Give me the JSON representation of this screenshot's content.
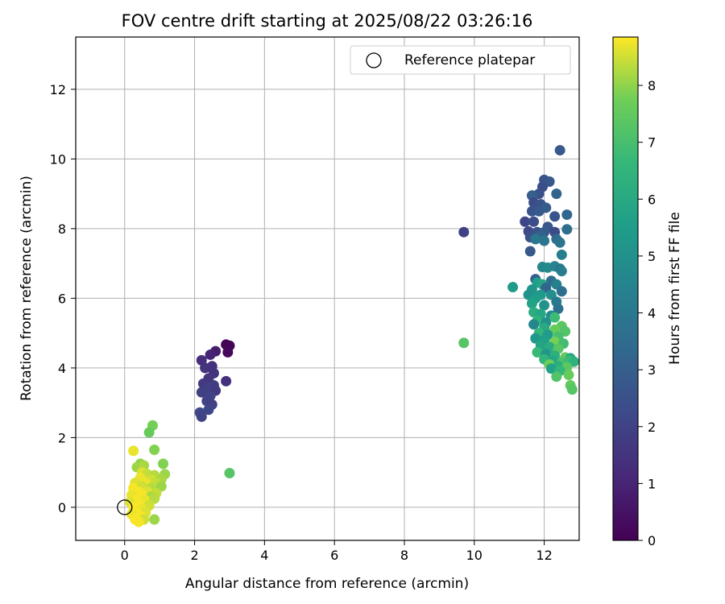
{
  "chart_data": {
    "type": "scatter",
    "title": "FOV centre drift starting at 2025/08/22 03:26:16",
    "xlabel": "Angular distance from reference (arcmin)",
    "ylabel": "Rotation from reference (arcmin)",
    "xlim": [
      -1.4,
      13.0
    ],
    "ylim": [
      -0.95,
      13.5
    ],
    "xticks": [
      0,
      2,
      4,
      6,
      8,
      10,
      12
    ],
    "yticks": [
      0,
      2,
      4,
      6,
      8,
      10,
      12
    ],
    "grid": true,
    "legend": {
      "placement": "upper-right",
      "entries": [
        "Reference platepar"
      ]
    },
    "reference_point": {
      "x": 0,
      "y": 0,
      "marker": "hollow-circle"
    },
    "colorbar": {
      "label": "Hours from first FF file",
      "colormap": "viridis",
      "range": [
        0,
        8.85
      ],
      "ticks": [
        0,
        1,
        2,
        3,
        4,
        5,
        6,
        7,
        8
      ]
    },
    "points": [
      {
        "x": 2.9,
        "y": 4.67,
        "h": 0.05
      },
      {
        "x": 3.0,
        "y": 4.64,
        "h": 0.1
      },
      {
        "x": 2.95,
        "y": 4.45,
        "h": 0.2
      },
      {
        "x": 2.6,
        "y": 4.48,
        "h": 0.8
      },
      {
        "x": 2.45,
        "y": 4.38,
        "h": 1.0
      },
      {
        "x": 2.2,
        "y": 4.22,
        "h": 1.3
      },
      {
        "x": 2.5,
        "y": 4.05,
        "h": 1.4
      },
      {
        "x": 2.3,
        "y": 4.0,
        "h": 1.5
      },
      {
        "x": 2.55,
        "y": 3.85,
        "h": 1.5
      },
      {
        "x": 2.4,
        "y": 3.7,
        "h": 1.6
      },
      {
        "x": 2.9,
        "y": 3.62,
        "h": 1.4
      },
      {
        "x": 2.25,
        "y": 3.55,
        "h": 1.7
      },
      {
        "x": 2.55,
        "y": 3.5,
        "h": 1.8
      },
      {
        "x": 2.35,
        "y": 3.4,
        "h": 1.9
      },
      {
        "x": 2.2,
        "y": 3.3,
        "h": 1.9
      },
      {
        "x": 2.6,
        "y": 3.35,
        "h": 1.7
      },
      {
        "x": 2.45,
        "y": 3.2,
        "h": 2.0
      },
      {
        "x": 2.35,
        "y": 3.05,
        "h": 2.0
      },
      {
        "x": 2.5,
        "y": 2.95,
        "h": 1.9
      },
      {
        "x": 2.4,
        "y": 2.8,
        "h": 2.1
      },
      {
        "x": 2.15,
        "y": 2.72,
        "h": 2.2
      },
      {
        "x": 2.2,
        "y": 2.6,
        "h": 2.0
      },
      {
        "x": 3.0,
        "y": 0.98,
        "h": 7.3
      },
      {
        "x": 9.7,
        "y": 7.9,
        "h": 1.9
      },
      {
        "x": 9.7,
        "y": 4.72,
        "h": 7.3
      },
      {
        "x": 12.45,
        "y": 10.25,
        "h": 2.8
      },
      {
        "x": 12.0,
        "y": 9.4,
        "h": 2.6
      },
      {
        "x": 12.15,
        "y": 9.35,
        "h": 2.7
      },
      {
        "x": 11.95,
        "y": 9.2,
        "h": 2.4
      },
      {
        "x": 11.85,
        "y": 9.0,
        "h": 2.5
      },
      {
        "x": 11.65,
        "y": 8.95,
        "h": 3.0
      },
      {
        "x": 12.35,
        "y": 9.0,
        "h": 3.2
      },
      {
        "x": 11.7,
        "y": 8.75,
        "h": 2.3
      },
      {
        "x": 11.9,
        "y": 8.7,
        "h": 2.6
      },
      {
        "x": 12.05,
        "y": 8.6,
        "h": 2.9
      },
      {
        "x": 11.65,
        "y": 8.5,
        "h": 2.6
      },
      {
        "x": 11.85,
        "y": 8.5,
        "h": 2.8
      },
      {
        "x": 12.3,
        "y": 8.35,
        "h": 2.6
      },
      {
        "x": 12.65,
        "y": 8.4,
        "h": 3.3
      },
      {
        "x": 11.45,
        "y": 8.2,
        "h": 2.1
      },
      {
        "x": 11.7,
        "y": 8.2,
        "h": 2.4
      },
      {
        "x": 12.1,
        "y": 8.05,
        "h": 2.7
      },
      {
        "x": 12.65,
        "y": 7.98,
        "h": 3.6
      },
      {
        "x": 11.55,
        "y": 7.92,
        "h": 2.2
      },
      {
        "x": 11.8,
        "y": 7.9,
        "h": 2.6
      },
      {
        "x": 12.0,
        "y": 7.9,
        "h": 2.9
      },
      {
        "x": 12.3,
        "y": 7.9,
        "h": 2.3
      },
      {
        "x": 11.9,
        "y": 7.8,
        "h": 3.1
      },
      {
        "x": 11.6,
        "y": 7.75,
        "h": 2.5
      },
      {
        "x": 12.35,
        "y": 7.7,
        "h": 3.5
      },
      {
        "x": 12.45,
        "y": 7.6,
        "h": 3.8
      },
      {
        "x": 11.75,
        "y": 7.7,
        "h": 4.0
      },
      {
        "x": 12.0,
        "y": 7.65,
        "h": 3.9
      },
      {
        "x": 11.6,
        "y": 7.35,
        "h": 2.8
      },
      {
        "x": 12.5,
        "y": 7.25,
        "h": 4.3
      },
      {
        "x": 11.95,
        "y": 6.9,
        "h": 4.6
      },
      {
        "x": 12.1,
        "y": 6.88,
        "h": 4.8
      },
      {
        "x": 12.3,
        "y": 6.92,
        "h": 4.5
      },
      {
        "x": 12.45,
        "y": 6.85,
        "h": 4.0
      },
      {
        "x": 12.5,
        "y": 6.78,
        "h": 4.2
      },
      {
        "x": 11.75,
        "y": 6.55,
        "h": 3.0
      },
      {
        "x": 12.2,
        "y": 6.5,
        "h": 3.5
      },
      {
        "x": 11.8,
        "y": 6.45,
        "h": 5.6
      },
      {
        "x": 11.95,
        "y": 6.4,
        "h": 5.8
      },
      {
        "x": 12.35,
        "y": 6.4,
        "h": 4.4
      },
      {
        "x": 11.1,
        "y": 6.32,
        "h": 5.4
      },
      {
        "x": 12.05,
        "y": 6.3,
        "h": 3.2
      },
      {
        "x": 12.5,
        "y": 6.2,
        "h": 3.6
      },
      {
        "x": 11.65,
        "y": 6.25,
        "h": 5.2
      },
      {
        "x": 11.55,
        "y": 6.1,
        "h": 5.0
      },
      {
        "x": 11.9,
        "y": 6.1,
        "h": 5.3
      },
      {
        "x": 12.2,
        "y": 6.1,
        "h": 4.9
      },
      {
        "x": 11.75,
        "y": 6.0,
        "h": 5.5
      },
      {
        "x": 12.35,
        "y": 5.9,
        "h": 4.1
      },
      {
        "x": 11.65,
        "y": 5.85,
        "h": 5.7
      },
      {
        "x": 12.0,
        "y": 5.8,
        "h": 5.1
      },
      {
        "x": 12.4,
        "y": 5.7,
        "h": 3.7
      },
      {
        "x": 11.7,
        "y": 5.6,
        "h": 6.2
      },
      {
        "x": 11.9,
        "y": 5.55,
        "h": 5.9
      },
      {
        "x": 12.2,
        "y": 5.5,
        "h": 4.7
      },
      {
        "x": 12.3,
        "y": 5.45,
        "h": 6.8
      },
      {
        "x": 11.8,
        "y": 5.35,
        "h": 6.4
      },
      {
        "x": 12.05,
        "y": 5.3,
        "h": 5.0
      },
      {
        "x": 11.7,
        "y": 5.25,
        "h": 4.6
      },
      {
        "x": 12.5,
        "y": 5.2,
        "h": 7.4
      },
      {
        "x": 12.0,
        "y": 5.15,
        "h": 6.0
      },
      {
        "x": 12.3,
        "y": 5.1,
        "h": 7.6
      },
      {
        "x": 12.6,
        "y": 5.05,
        "h": 7.2
      },
      {
        "x": 11.85,
        "y": 5.0,
        "h": 6.6
      },
      {
        "x": 12.1,
        "y": 4.95,
        "h": 5.4
      },
      {
        "x": 12.4,
        "y": 4.9,
        "h": 7.0
      },
      {
        "x": 11.75,
        "y": 4.85,
        "h": 5.3
      },
      {
        "x": 12.0,
        "y": 4.8,
        "h": 5.6
      },
      {
        "x": 12.3,
        "y": 4.75,
        "h": 7.8
      },
      {
        "x": 12.55,
        "y": 4.7,
        "h": 6.9
      },
      {
        "x": 11.9,
        "y": 4.65,
        "h": 5.8
      },
      {
        "x": 12.15,
        "y": 4.6,
        "h": 6.1
      },
      {
        "x": 12.4,
        "y": 4.55,
        "h": 7.3
      },
      {
        "x": 11.8,
        "y": 4.45,
        "h": 6.7
      },
      {
        "x": 12.05,
        "y": 4.4,
        "h": 5.2
      },
      {
        "x": 12.3,
        "y": 4.35,
        "h": 6.3
      },
      {
        "x": 12.6,
        "y": 4.3,
        "h": 7.5
      },
      {
        "x": 12.75,
        "y": 4.28,
        "h": 6.0
      },
      {
        "x": 12.0,
        "y": 4.25,
        "h": 6.5
      },
      {
        "x": 12.25,
        "y": 4.2,
        "h": 5.9
      },
      {
        "x": 12.5,
        "y": 4.15,
        "h": 7.1
      },
      {
        "x": 12.7,
        "y": 4.2,
        "h": 6.8
      },
      {
        "x": 12.85,
        "y": 4.18,
        "h": 6.4
      },
      {
        "x": 12.15,
        "y": 4.1,
        "h": 7.7
      },
      {
        "x": 12.4,
        "y": 4.05,
        "h": 6.2
      },
      {
        "x": 12.65,
        "y": 4.02,
        "h": 7.4
      },
      {
        "x": 12.2,
        "y": 3.98,
        "h": 5.7
      },
      {
        "x": 12.45,
        "y": 3.92,
        "h": 6.6
      },
      {
        "x": 12.7,
        "y": 3.8,
        "h": 7.6
      },
      {
        "x": 12.35,
        "y": 3.75,
        "h": 7.2
      },
      {
        "x": 12.75,
        "y": 3.5,
        "h": 7.5
      },
      {
        "x": 12.8,
        "y": 3.38,
        "h": 7.3
      },
      {
        "x": 0.8,
        "y": 2.35,
        "h": 7.8
      },
      {
        "x": 0.7,
        "y": 2.15,
        "h": 7.6
      },
      {
        "x": 0.25,
        "y": 1.62,
        "h": 8.7
      },
      {
        "x": 0.85,
        "y": 1.65,
        "h": 7.9
      },
      {
        "x": 0.45,
        "y": 1.25,
        "h": 8.0
      },
      {
        "x": 1.1,
        "y": 1.25,
        "h": 7.9
      },
      {
        "x": 0.35,
        "y": 1.15,
        "h": 8.1
      },
      {
        "x": 0.55,
        "y": 1.2,
        "h": 8.2
      },
      {
        "x": 0.5,
        "y": 1.0,
        "h": 8.6
      },
      {
        "x": 0.65,
        "y": 0.95,
        "h": 8.4
      },
      {
        "x": 0.85,
        "y": 0.92,
        "h": 8.3
      },
      {
        "x": 1.15,
        "y": 0.95,
        "h": 8.1
      },
      {
        "x": 0.45,
        "y": 0.85,
        "h": 8.7
      },
      {
        "x": 0.75,
        "y": 0.8,
        "h": 8.5
      },
      {
        "x": 1.05,
        "y": 0.8,
        "h": 8.2
      },
      {
        "x": 0.3,
        "y": 0.7,
        "h": 8.6
      },
      {
        "x": 0.6,
        "y": 0.7,
        "h": 8.7
      },
      {
        "x": 0.9,
        "y": 0.7,
        "h": 8.4
      },
      {
        "x": 0.25,
        "y": 0.55,
        "h": 8.8
      },
      {
        "x": 0.5,
        "y": 0.6,
        "h": 8.5
      },
      {
        "x": 0.75,
        "y": 0.55,
        "h": 8.3
      },
      {
        "x": 1.05,
        "y": 0.6,
        "h": 8.1
      },
      {
        "x": 0.4,
        "y": 0.45,
        "h": 8.8
      },
      {
        "x": 0.65,
        "y": 0.45,
        "h": 8.6
      },
      {
        "x": 0.9,
        "y": 0.4,
        "h": 8.4
      },
      {
        "x": 0.2,
        "y": 0.35,
        "h": 8.7
      },
      {
        "x": 0.5,
        "y": 0.35,
        "h": 8.8
      },
      {
        "x": 0.75,
        "y": 0.3,
        "h": 8.2
      },
      {
        "x": 0.3,
        "y": 0.2,
        "h": 8.8
      },
      {
        "x": 0.6,
        "y": 0.2,
        "h": 8.7
      },
      {
        "x": 0.85,
        "y": 0.25,
        "h": 8.3
      },
      {
        "x": 0.15,
        "y": 0.15,
        "h": 8.6
      },
      {
        "x": 0.4,
        "y": 0.1,
        "h": 8.8
      },
      {
        "x": 0.7,
        "y": 0.05,
        "h": 8.5
      },
      {
        "x": 0.25,
        "y": 0.0,
        "h": 8.8
      },
      {
        "x": 0.5,
        "y": -0.05,
        "h": 8.7
      },
      {
        "x": 0.35,
        "y": -0.15,
        "h": 8.8
      },
      {
        "x": 0.6,
        "y": -0.15,
        "h": 8.6
      },
      {
        "x": 0.2,
        "y": -0.2,
        "h": 8.7
      },
      {
        "x": 0.45,
        "y": -0.25,
        "h": 8.8
      },
      {
        "x": 0.3,
        "y": -0.35,
        "h": 8.8
      },
      {
        "x": 0.55,
        "y": -0.35,
        "h": 8.5
      },
      {
        "x": 0.4,
        "y": -0.42,
        "h": 8.8
      },
      {
        "x": 0.85,
        "y": -0.35,
        "h": 8.1
      }
    ]
  }
}
